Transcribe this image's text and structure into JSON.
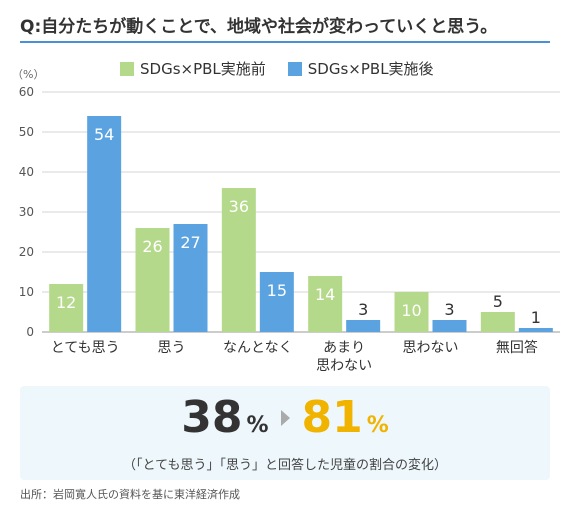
{
  "question": "Q:自分たちが動くことで、地域や社会が変わっていくと思う。",
  "unit_label": "（%）",
  "legend": [
    {
      "label": "SDGs×PBL実施前",
      "color": "#b5d98a"
    },
    {
      "label": "SDGs×PBL実施後",
      "color": "#5aa3e0"
    }
  ],
  "chart_data": {
    "type": "bar",
    "categories": [
      "とても思う",
      "思う",
      "なんとなく",
      "あまり\n思わない",
      "思わない",
      "無回答"
    ],
    "series": [
      {
        "name": "SDGs×PBL実施前",
        "values": [
          12,
          26,
          36,
          14,
          10,
          5
        ],
        "color": "#b5d98a"
      },
      {
        "name": "SDGs×PBL実施後",
        "values": [
          54,
          27,
          15,
          3,
          3,
          1
        ],
        "color": "#5aa3e0"
      }
    ],
    "ylim": [
      0,
      60
    ],
    "yticks": [
      0,
      10,
      20,
      30,
      40,
      50,
      60
    ],
    "grid": true,
    "legend_position": "top"
  },
  "summary": {
    "before_value": "38",
    "after_value": "81",
    "pct": "%",
    "after_color": "#f0b400",
    "note": "（「とても思う」「思う」と回答した児童の割合の変化）"
  },
  "source": "出所：岩岡寛人氏の資料を基に東洋経済作成"
}
